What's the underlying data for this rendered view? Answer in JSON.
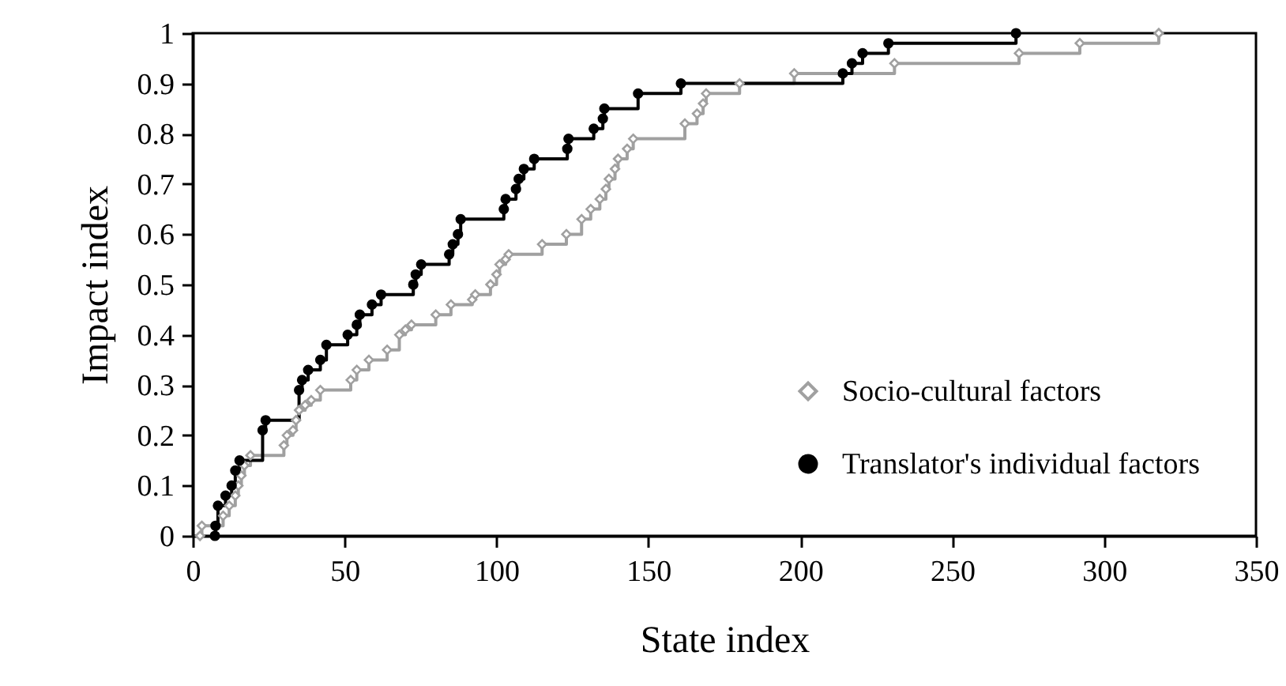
{
  "chart_data": {
    "type": "step",
    "xlabel": "State index",
    "ylabel": "Impact index",
    "xlim": [
      0,
      350
    ],
    "xticks": [
      0,
      50,
      100,
      150,
      200,
      250,
      300,
      350
    ],
    "ylim": [
      0,
      1
    ],
    "yticks": [
      0,
      0.1,
      0.2,
      0.3,
      0.4,
      0.5,
      0.6,
      0.7,
      0.8,
      0.9,
      1
    ],
    "grid": false,
    "legend": "bottom right",
    "series": [
      {
        "name": "Socio-cultural factors",
        "color": "#a0a0a0",
        "marker": "diamond",
        "x": [
          2.4,
          3,
          10,
          12,
          14,
          15,
          16,
          17,
          19,
          30,
          31,
          33,
          34,
          35,
          37,
          39,
          42,
          52,
          54,
          58,
          64,
          68,
          70,
          72,
          80,
          85,
          92,
          93,
          98,
          100,
          101,
          103,
          104,
          115,
          123,
          128,
          131,
          134,
          136,
          137,
          139,
          140,
          143,
          145,
          162,
          166,
          168,
          169,
          180,
          198,
          231,
          272,
          292,
          318
        ],
        "values": [
          0,
          0.02,
          0.04,
          0.06,
          0.08,
          0.1,
          0.12,
          0.14,
          0.16,
          0.18,
          0.2,
          0.21,
          0.23,
          0.25,
          0.26,
          0.27,
          0.29,
          0.31,
          0.33,
          0.35,
          0.37,
          0.4,
          0.41,
          0.42,
          0.44,
          0.46,
          0.47,
          0.48,
          0.5,
          0.52,
          0.54,
          0.55,
          0.56,
          0.58,
          0.6,
          0.63,
          0.65,
          0.67,
          0.69,
          0.71,
          0.73,
          0.75,
          0.77,
          0.79,
          0.82,
          0.84,
          0.86,
          0.88,
          0.9,
          0.92,
          0.94,
          0.96,
          0.98,
          1
        ]
      },
      {
        "name": "Translator's individual factors",
        "color": "#000000",
        "marker": "circle",
        "x": [
          7.3,
          7.5,
          8.3,
          10.8,
          12.8,
          14,
          15.4,
          23,
          24,
          35,
          36,
          38,
          42,
          44,
          51,
          54,
          55,
          59,
          62,
          72.6,
          73.4,
          75.2,
          84.4,
          85.6,
          87.3,
          88.2,
          102.4,
          103,
          106.4,
          107.3,
          109,
          112.4,
          123.3,
          123.7,
          132,
          135,
          135.5,
          146.6,
          160.7,
          214,
          217,
          220.5,
          229,
          271
        ],
        "values": [
          0,
          0.02,
          0.06,
          0.08,
          0.1,
          0.13,
          0.15,
          0.21,
          0.23,
          0.29,
          0.31,
          0.33,
          0.35,
          0.38,
          0.4,
          0.42,
          0.44,
          0.46,
          0.48,
          0.5,
          0.52,
          0.54,
          0.56,
          0.58,
          0.6,
          0.63,
          0.65,
          0.67,
          0.69,
          0.71,
          0.73,
          0.75,
          0.77,
          0.79,
          0.81,
          0.83,
          0.85,
          0.88,
          0.9,
          0.92,
          0.94,
          0.96,
          0.98,
          1
        ]
      }
    ]
  }
}
